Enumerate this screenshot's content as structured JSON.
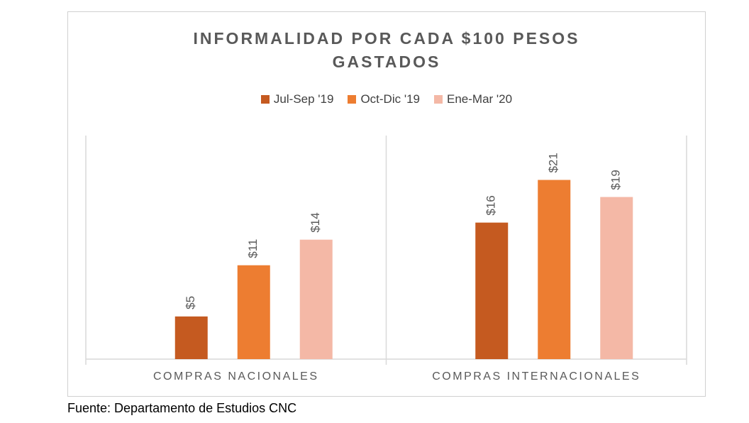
{
  "source": "Fuente: Departamento de Estudios CNC",
  "chart_data": {
    "type": "bar",
    "title_lines": [
      "INFORMALIDAD POR CADA $100 PESOS",
      "GASTADOS"
    ],
    "categories": [
      "COMPRAS NACIONALES",
      "COMPRAS INTERNACIONALES"
    ],
    "series": [
      {
        "name": "Jul-Sep '19",
        "color": "#c55a20",
        "values": [
          5,
          16
        ],
        "labels": [
          "$5",
          "$16"
        ]
      },
      {
        "name": "Oct-Dic '19",
        "color": "#ed7d31",
        "values": [
          11,
          21
        ],
        "labels": [
          "$11",
          "$21"
        ]
      },
      {
        "name": "Ene-Mar '20",
        "color": "#f4b8a6",
        "values": [
          14,
          19
        ],
        "labels": [
          "$14",
          "$19"
        ]
      }
    ],
    "ylim": [
      0,
      26.2
    ],
    "legend_position": "top",
    "grid": false
  }
}
